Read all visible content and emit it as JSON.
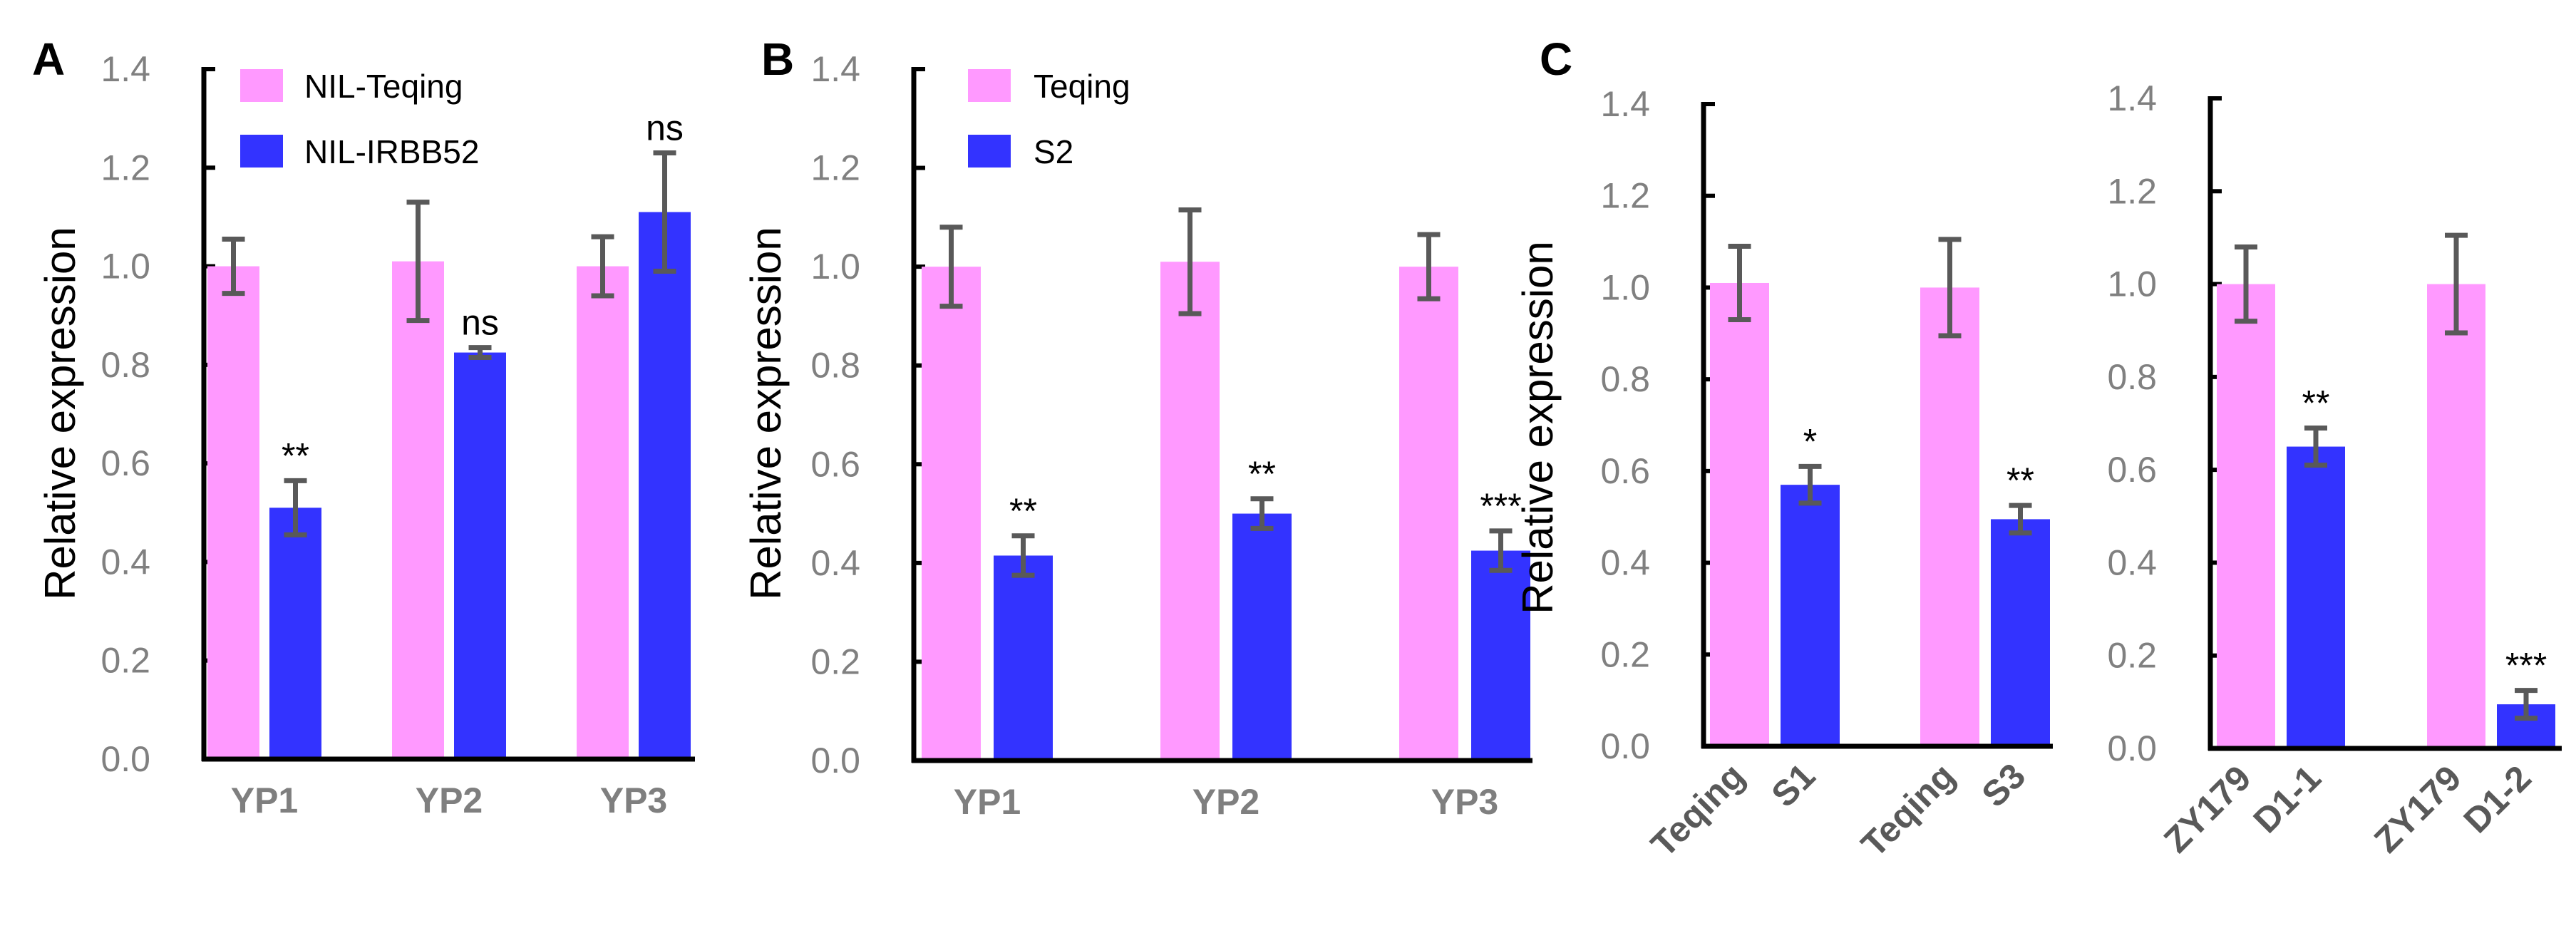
{
  "colors": {
    "control": "#ff99ff",
    "test": "#3333ff",
    "error_bar": "#595959",
    "tick_label": "#808080"
  },
  "chart_data": [
    {
      "type": "bar",
      "panel": "A",
      "ylabel": "Relative expression",
      "ylim": [
        0,
        1.4
      ],
      "yticks": [
        "0.0",
        "0.2",
        "0.4",
        "0.6",
        "0.8",
        "1.0",
        "1.2",
        "1.4"
      ],
      "legend": [
        "NIL-Teqing",
        "NIL-IRBB52"
      ],
      "legend_placement": "top-left",
      "categories": [
        "YP1",
        "YP2",
        "YP3"
      ],
      "series": [
        {
          "name": "NIL-Teqing",
          "values": [
            1.0,
            1.01,
            1.0
          ],
          "errors": [
            0.055,
            0.12,
            0.06
          ]
        },
        {
          "name": "NIL-IRBB52",
          "values": [
            0.51,
            0.825,
            1.11
          ],
          "errors": [
            0.055,
            0.01,
            0.12
          ],
          "significance": [
            "**",
            "ns",
            "ns"
          ]
        }
      ]
    },
    {
      "type": "bar",
      "panel": "B",
      "ylabel": "Relative expression",
      "ylim": [
        0,
        1.4
      ],
      "yticks": [
        "0.0",
        "0.2",
        "0.4",
        "0.6",
        "0.8",
        "1.0",
        "1.2",
        "1.4"
      ],
      "legend": [
        "Teqing",
        "S2"
      ],
      "legend_placement": "top-left",
      "categories": [
        "YP1",
        "YP2",
        "YP3"
      ],
      "series": [
        {
          "name": "Teqing",
          "values": [
            1.0,
            1.01,
            1.0
          ],
          "errors": [
            0.08,
            0.105,
            0.065
          ]
        },
        {
          "name": "S2",
          "values": [
            0.415,
            0.5,
            0.425
          ],
          "errors": [
            0.04,
            0.03,
            0.04
          ],
          "significance": [
            "**",
            "**",
            "***"
          ]
        }
      ]
    },
    {
      "type": "bar",
      "panel": "C",
      "ylabel": "Relative expression",
      "ylim": [
        0,
        1.4
      ],
      "yticks": [
        "0.0",
        "0.2",
        "0.4",
        "0.6",
        "0.8",
        "1.0",
        "1.2",
        "1.4"
      ],
      "bar_labels": [
        "Teqing",
        "S1",
        "Teqing",
        "S3"
      ],
      "values": [
        1.01,
        0.57,
        1.0,
        0.495
      ],
      "errors": [
        0.08,
        0.04,
        0.105,
        0.03
      ],
      "significance": [
        "",
        "*",
        "",
        "**"
      ]
    },
    {
      "type": "bar",
      "panel": "",
      "ylabel": "",
      "ylim": [
        0,
        1.4
      ],
      "yticks": [
        "0.0",
        "0.2",
        "0.4",
        "0.6",
        "0.8",
        "1.0",
        "1.2",
        "1.4"
      ],
      "bar_labels": [
        "ZY179",
        "D1-1",
        "ZY179",
        "D1-2"
      ],
      "values": [
        1.0,
        0.65,
        1.0,
        0.095
      ],
      "errors": [
        0.08,
        0.04,
        0.105,
        0.03
      ],
      "significance": [
        "",
        "**",
        "",
        "***"
      ]
    }
  ]
}
